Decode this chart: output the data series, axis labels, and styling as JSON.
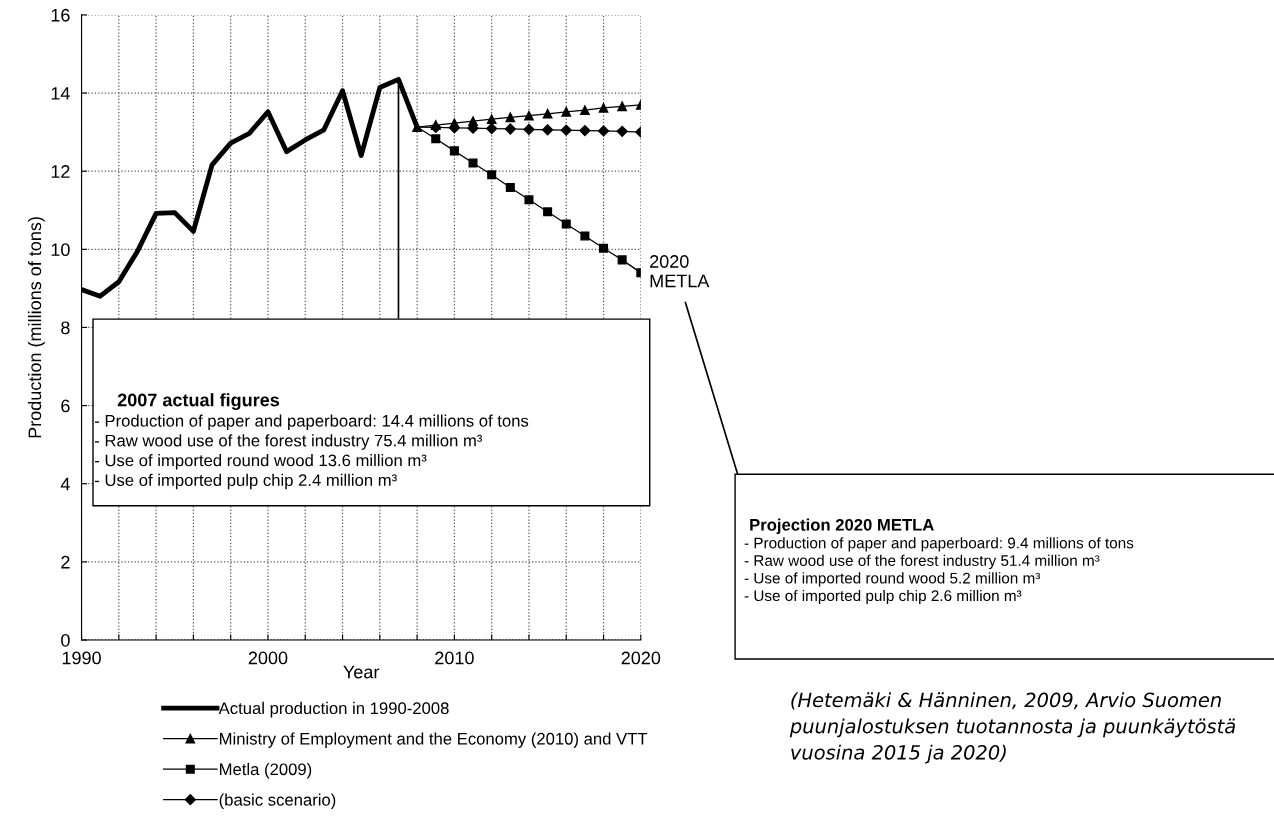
{
  "chart_data": {
    "type": "line",
    "xlabel": "Year",
    "ylabel": "Production (millions of tons)",
    "xlim": [
      1990,
      2020
    ],
    "ylim": [
      0,
      16
    ],
    "xticks": [
      1990,
      {
        "value": 1992,
        "label": null
      },
      {
        "value": 1994,
        "label": null
      },
      {
        "value": 1996,
        "label": null
      },
      {
        "value": 1998,
        "label": null
      },
      2000,
      {
        "value": 2002,
        "label": null
      },
      {
        "value": 2004,
        "label": null
      },
      {
        "value": 2006,
        "label": null
      },
      {
        "value": 2008,
        "label": null
      },
      2010,
      {
        "value": 2012,
        "label": null
      },
      {
        "value": 2014,
        "label": null
      },
      {
        "value": 2016,
        "label": null
      },
      {
        "value": 2018,
        "label": null
      },
      2020
    ],
    "yticks": [
      0,
      2,
      4,
      6,
      8,
      10,
      12,
      14,
      16
    ],
    "grid": true,
    "legend": "bottom",
    "series": [
      {
        "name": "Actual production in 1990-2008",
        "color": "#000000",
        "marker": "none",
        "x": [
          1990,
          1991,
          1992,
          1993,
          1994,
          1995,
          1996,
          1997,
          1998,
          1999,
          2000,
          2001,
          2002,
          2003,
          2004,
          2005,
          2006,
          2007,
          2008
        ],
        "values": [
          8.97,
          8.8,
          9.17,
          9.95,
          10.92,
          10.94,
          10.46,
          12.16,
          12.72,
          12.97,
          13.52,
          12.5,
          12.8,
          13.06,
          14.06,
          12.4,
          14.14,
          14.35,
          13.13
        ]
      },
      {
        "name": "Ministry of Employment and the Economy (2010) and VTT",
        "color": "#000000",
        "marker": "triangle",
        "x": [
          2008,
          2009,
          2010,
          2011,
          2012,
          2013,
          2014,
          2015,
          2016,
          2017,
          2018,
          2019,
          2020
        ],
        "values": [
          13.13,
          13.18,
          13.23,
          13.28,
          13.33,
          13.38,
          13.42,
          13.47,
          13.52,
          13.56,
          13.62,
          13.66,
          13.7
        ]
      },
      {
        "name": "Metla (2009)",
        "color": "#000000",
        "marker": "square",
        "x": [
          2008,
          2009,
          2010,
          2011,
          2012,
          2013,
          2014,
          2015,
          2016,
          2017,
          2018,
          2019,
          2020
        ],
        "values": [
          13.13,
          12.83,
          12.52,
          12.21,
          11.91,
          11.58,
          11.27,
          10.96,
          10.65,
          10.34,
          10.03,
          9.73,
          9.4
        ]
      },
      {
        "name": "(basic scenario)",
        "color": "#000000",
        "marker": "diamond",
        "x": [
          2008,
          2009,
          2010,
          2011,
          2012,
          2013,
          2014,
          2015,
          2016,
          2017,
          2018,
          2019,
          2020
        ],
        "values": [
          13.13,
          13.12,
          13.11,
          13.1,
          13.09,
          13.08,
          13.07,
          13.06,
          13.05,
          13.04,
          13.03,
          13.02,
          13.0
        ]
      }
    ],
    "annotations": [
      "2007 actual figures",
      "- Production of paper and paperboard: 14.4 millions of tons\n- Raw wood use of the forest industry 75.4 million m³\n- Use of imported round wood 13.6 million m³\n- Use of imported pulp chip 2.4 million m³",
      {
        "text": "2020\nMETLA",
        "x": 2020,
        "y": 9.4
      },
      "Projection 2020 METLA",
      "- Production of paper and paperboard: 9.4 millions of tons\n- Raw wood use of the forest industry 51.4 million m³\n- Use of imported round wood 5.2 million m³\n- Use of imported pulp chip 2.6 million m³",
      "(Hetemäki & Hänninen, 2009, Arvio Suomen puunjalostuksen tuotannosta ja puunkäytöstä vuosina 2015 ja 2020)"
    ]
  }
}
